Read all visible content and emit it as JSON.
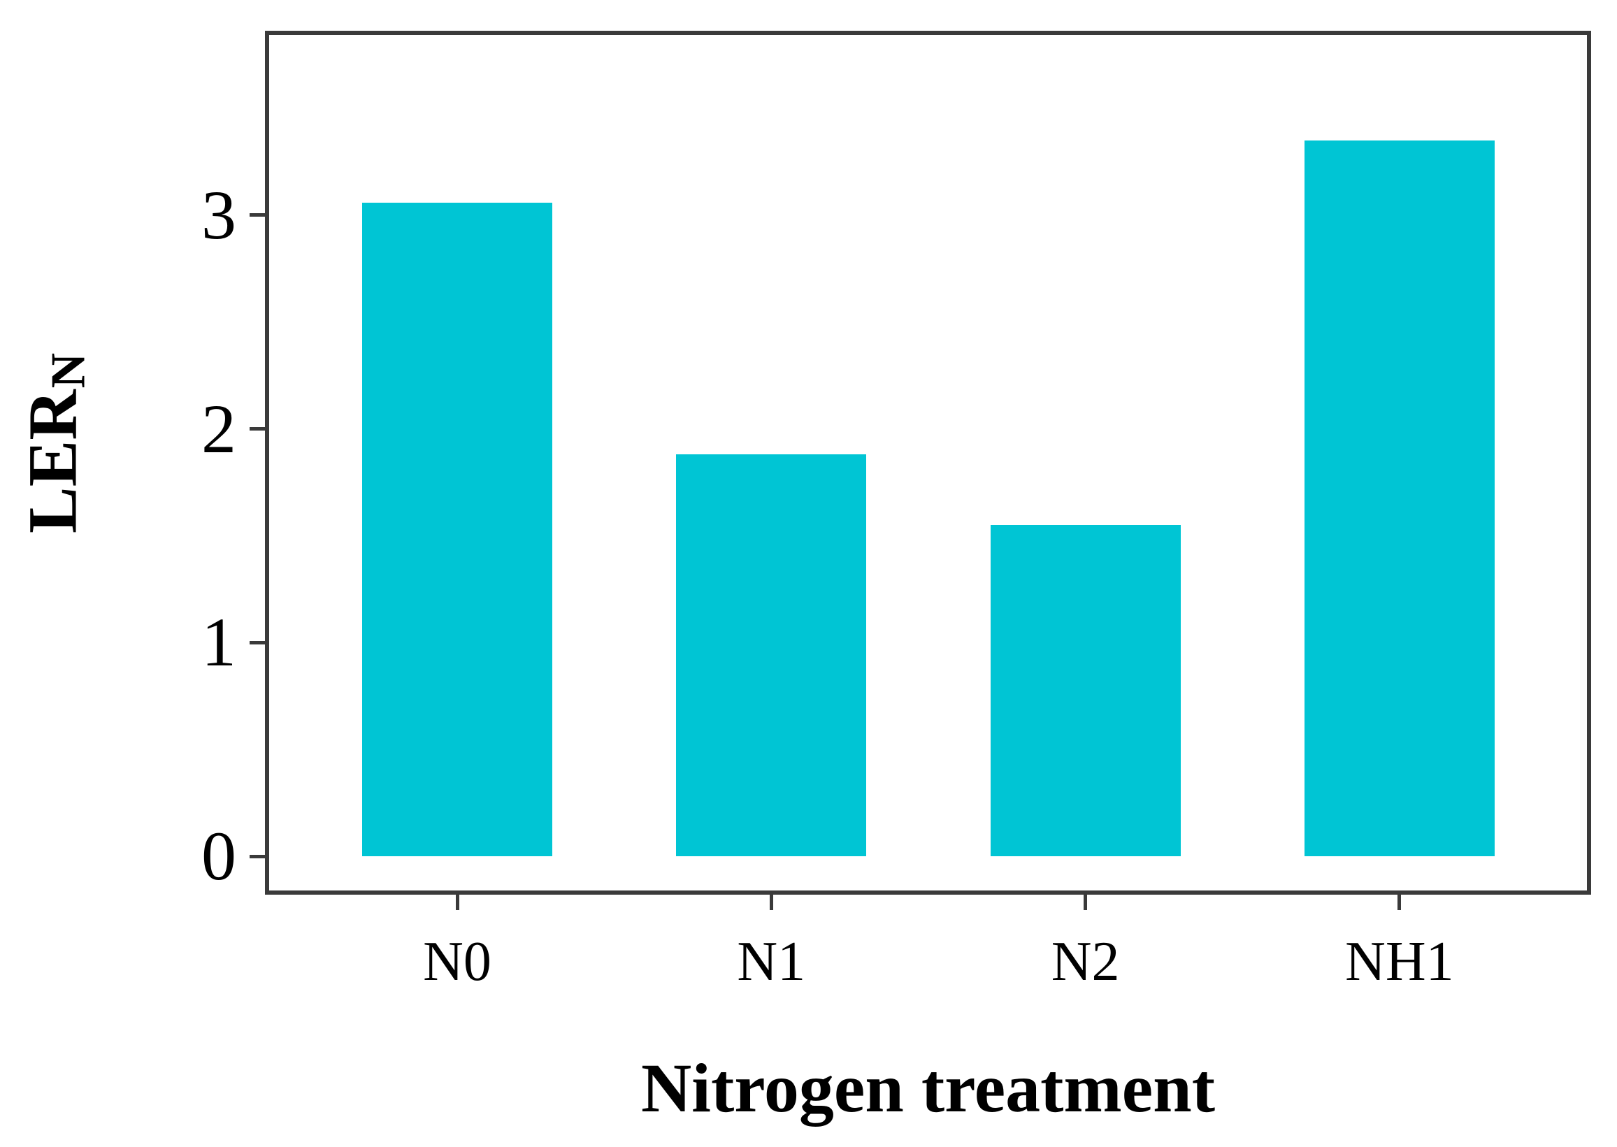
{
  "chart_data": {
    "type": "bar",
    "categories": [
      "N0",
      "N1",
      "N2",
      "NH1"
    ],
    "values": [
      3.06,
      1.88,
      1.55,
      3.35
    ],
    "title": "",
    "xlabel": "Nitrogen treatment",
    "ylabel_main": "LER",
    "ylabel_subscript": "N",
    "ytick_labels": [
      "0",
      "1",
      "2",
      "3"
    ],
    "yticks": [
      0,
      1,
      2,
      3
    ],
    "ylim": [
      -0.17,
      3.85
    ],
    "grid": false,
    "legend": "none",
    "bar_color": "#00c5d4",
    "spine_color": "#3a3a3a",
    "text_color": "#000000",
    "background_color": "#ffffff"
  }
}
